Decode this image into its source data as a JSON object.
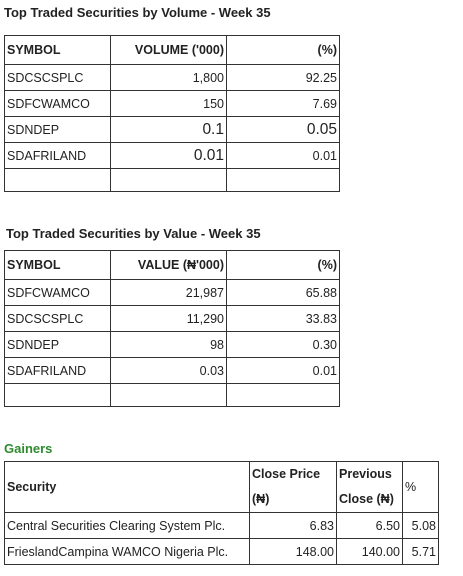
{
  "volume": {
    "title": "Top Traded Securities by Volume - Week 35",
    "headers": [
      "SYMBOL",
      "VOLUME ('000)",
      "(%)"
    ],
    "rows": [
      [
        "SDCSCSPLC",
        "1,800",
        "92.25"
      ],
      [
        "SDFCWAMCO",
        "150",
        "7.69"
      ],
      [
        "SDNDEP",
        "0.1",
        "0.05"
      ],
      [
        "SDAFRILAND",
        "0.01",
        "0.01"
      ]
    ]
  },
  "value": {
    "title": "Top Traded Securities by Value - Week 35",
    "headers": [
      "SYMBOL",
      "VALUE (₦'000)",
      "(%)"
    ],
    "rows": [
      [
        "SDFCWAMCO",
        "21,987",
        "65.88"
      ],
      [
        "SDCSCSPLC",
        "11,290",
        "33.83"
      ],
      [
        "SDNDEP",
        "98",
        "0.30"
      ],
      [
        "SDAFRILAND",
        "0.03",
        "0.01"
      ]
    ]
  },
  "gainers": {
    "title": "Gainers",
    "headers": [
      "Security",
      "Close Price (₦)",
      "Previous Close (₦)",
      "%"
    ],
    "rows": [
      [
        "Central Securities Clearing System Plc.",
        "6.83",
        "6.50",
        "5.08"
      ],
      [
        "FrieslandCampina WAMCO Nigeria Plc.",
        "148.00",
        "140.00",
        "5.71"
      ]
    ]
  },
  "colors": {
    "gainers_heading": "#2f8a2f",
    "border": "#333333"
  }
}
